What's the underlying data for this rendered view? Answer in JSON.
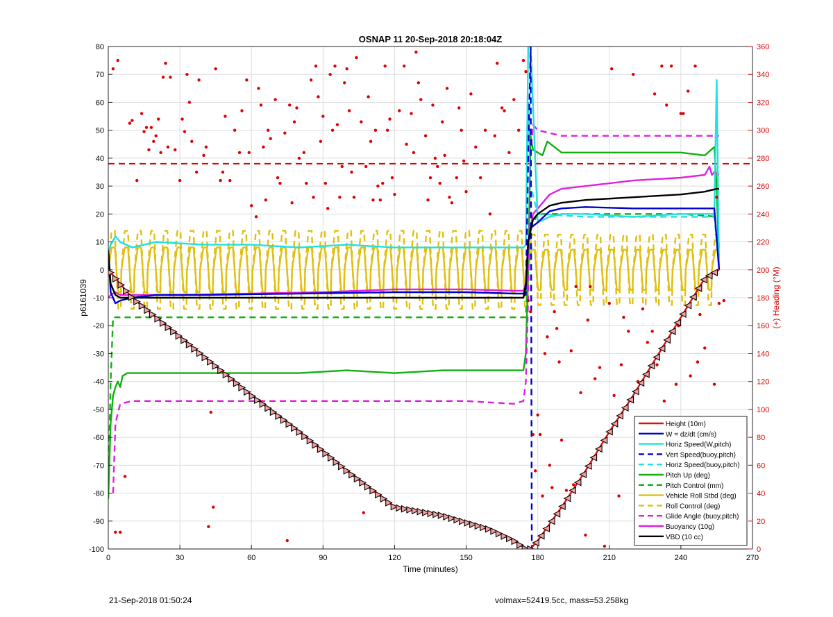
{
  "chart_data": {
    "type": "line",
    "title": "OSNAP 11 20-Sep-2018 20:18:04Z",
    "xlabel": "Time (minutes)",
    "ylabel": "p6161039",
    "y2label": "(+) Heading (°M)",
    "xlim": [
      0,
      270
    ],
    "ylim": [
      -100,
      80
    ],
    "y2lim": [
      0,
      360
    ],
    "xticks": [
      "0",
      "30",
      "60",
      "90",
      "120",
      "150",
      "180",
      "210",
      "240",
      "270"
    ],
    "yticks": [
      "-100",
      "-90",
      "-80",
      "-70",
      "-60",
      "-50",
      "-40",
      "-30",
      "-20",
      "-10",
      "0",
      "10",
      "20",
      "30",
      "40",
      "50",
      "60",
      "70",
      "80"
    ],
    "y2ticks": [
      "0",
      "20",
      "40",
      "60",
      "80",
      "100",
      "120",
      "140",
      "160",
      "180",
      "200",
      "220",
      "240",
      "260",
      "280",
      "300",
      "320",
      "340",
      "360"
    ],
    "grid": true,
    "legend_position": "bottom-right",
    "colors": {
      "height": "#e01010",
      "w": "#0000cc",
      "horiz": "#20e0e0",
      "pitch": "#10b010",
      "roll": "#e0c010",
      "glide": "#e020e0",
      "vbd": "#000000",
      "heading": "#dd0000"
    },
    "series": [
      {
        "name": "Height (10m)",
        "style": "solid",
        "color": "#e01010",
        "x": [
          0,
          1,
          3,
          5,
          10,
          20,
          40,
          60,
          80,
          100,
          120,
          140,
          160,
          170,
          175,
          177,
          178,
          180,
          190,
          200,
          210,
          220,
          230,
          240,
          250,
          256
        ],
        "y": [
          0,
          -1,
          -3,
          -5,
          -10,
          -17,
          -31,
          -45,
          -58,
          -72,
          -85,
          -88,
          -93,
          -97,
          -100,
          -100,
          -99,
          -97,
          -85,
          -72,
          -58,
          -45,
          -31,
          -17,
          -3,
          0
        ]
      },
      {
        "name": "W = dz/dt (cm/s)",
        "style": "solid",
        "color": "#0000cc",
        "x": [
          0,
          1,
          3,
          5,
          10,
          20,
          40,
          80,
          120,
          150,
          170,
          174,
          175,
          176,
          177,
          180,
          185,
          190,
          200,
          220,
          240,
          250,
          254,
          256
        ],
        "y": [
          7,
          -8,
          -12,
          -11,
          -10,
          -9,
          -9,
          -8.5,
          -8,
          -8,
          -8.5,
          -8.5,
          -7,
          10,
          15,
          17,
          21,
          22,
          22.5,
          22,
          22,
          22,
          22,
          0
        ]
      },
      {
        "name": "Horiz Speed(W,pitch)",
        "style": "solid",
        "color": "#20e0e0",
        "x": [
          0,
          1,
          3,
          5,
          10,
          20,
          40,
          60,
          80,
          100,
          120,
          140,
          160,
          170,
          174,
          175,
          176,
          177,
          180,
          185,
          190,
          200,
          220,
          240,
          250,
          254,
          255,
          256
        ],
        "y": [
          6,
          9,
          12,
          10,
          8,
          10,
          9,
          9,
          8,
          9,
          8,
          8,
          8,
          8,
          8,
          9,
          80,
          80,
          17,
          19,
          20,
          20,
          19,
          20,
          20,
          20,
          68,
          0
        ]
      },
      {
        "name": "Vert Speed(buoy,pitch)",
        "style": "dashed",
        "color": "#0000cc",
        "x": [
          174,
          175,
          176,
          177,
          177.5,
          178
        ],
        "y": [
          -9,
          -9,
          40,
          80,
          -100,
          -100
        ]
      },
      {
        "name": "Horiz Speed(buoy,pitch)",
        "style": "dashed",
        "color": "#20e0e0",
        "x": [
          175,
          176,
          177,
          180,
          200,
          230,
          254,
          256
        ],
        "y": [
          10,
          60,
          30,
          20,
          19,
          19,
          19,
          2
        ]
      },
      {
        "name": "Pitch Up (deg)",
        "style": "solid",
        "color": "#10b010",
        "x": [
          0,
          1,
          2,
          3,
          4,
          5,
          6,
          8,
          10,
          20,
          40,
          60,
          80,
          100,
          120,
          140,
          160,
          170,
          174,
          175,
          176,
          177,
          178,
          180,
          182,
          184,
          190,
          200,
          220,
          240,
          250,
          254,
          255,
          256
        ],
        "y": [
          -82,
          -55,
          -45,
          -42,
          -40,
          -42,
          -38,
          -37,
          -37,
          -37,
          -37,
          -37,
          -37,
          -36,
          -37,
          -36,
          -36,
          -36,
          -36,
          -30,
          0,
          48,
          43,
          42,
          41,
          46,
          42,
          42,
          42,
          42,
          41,
          44,
          30,
          0
        ]
      },
      {
        "name": "Pitch Control (mm)",
        "style": "dashed",
        "color": "#10b010",
        "x": [
          0,
          1,
          2,
          5,
          50,
          100,
          150,
          175,
          176,
          177,
          180,
          200,
          240,
          256
        ],
        "y": [
          -80,
          -40,
          -17,
          -17,
          -17,
          -17,
          -17,
          -17,
          0,
          15,
          20,
          20,
          20,
          19
        ]
      },
      {
        "name": "Vehicle Roll Stbd (deg)",
        "style": "solid",
        "color": "#e0c010",
        "kind": "oscillation",
        "x_range": [
          0,
          256
        ],
        "baseline": [
          0,
          0
        ],
        "amplitude": 8
      },
      {
        "name": "Roll Control (deg)",
        "style": "dashed",
        "color": "#e0c010",
        "kind": "oscillation",
        "x_range": [
          0,
          256
        ],
        "baseline": [
          0,
          0
        ],
        "amplitude": 14
      },
      {
        "name": "Glide Angle (buoy,pitch)",
        "style": "dashed",
        "color": "#e020e0",
        "x": [
          2,
          3,
          5,
          10,
          30,
          60,
          90,
          120,
          150,
          170,
          174,
          175,
          176,
          177,
          178,
          180,
          190,
          200,
          220,
          240,
          250,
          254,
          256
        ],
        "y": [
          -80,
          -55,
          -48,
          -47,
          -47,
          -47,
          -47,
          -47,
          -47,
          -48,
          -47,
          -40,
          -10,
          40,
          52,
          50,
          48,
          48,
          48,
          48,
          48,
          48,
          48
        ]
      },
      {
        "name": "Buoyancy (10g)",
        "style": "solid",
        "color": "#e020e0",
        "x": [
          0,
          1,
          3,
          5,
          10,
          30,
          60,
          90,
          120,
          150,
          170,
          174,
          175,
          176,
          177,
          178,
          180,
          185,
          190,
          200,
          220,
          240,
          250,
          252,
          253,
          254,
          256
        ],
        "y": [
          -10,
          -9,
          -8,
          -9,
          -9,
          -9,
          -8.5,
          -8,
          -7,
          -7,
          -7.5,
          -7.5,
          -5,
          10,
          15,
          20,
          22,
          27,
          29,
          30,
          32,
          33,
          34,
          37,
          34,
          35,
          34
        ]
      },
      {
        "name": "VBD (10 cc)",
        "style": "solid",
        "color": "#000000",
        "x": [
          0,
          1,
          3,
          5,
          10,
          20,
          60,
          120,
          170,
          174,
          175,
          176,
          177,
          178,
          180,
          185,
          190,
          200,
          220,
          240,
          250,
          255,
          256
        ],
        "y": [
          7,
          -5,
          -9,
          -10,
          -10,
          -10,
          -10,
          -10,
          -10,
          -10,
          -5,
          10,
          14,
          18,
          20,
          23,
          24,
          25,
          26,
          27,
          28,
          29,
          29
        ]
      }
    ],
    "heading_points": [
      [
        2,
        344
      ],
      [
        3,
        12
      ],
      [
        4,
        350
      ],
      [
        5,
        12
      ],
      [
        7,
        52
      ],
      [
        9,
        305
      ],
      [
        10,
        307
      ],
      [
        12,
        264
      ],
      [
        14,
        312
      ],
      [
        15,
        299
      ],
      [
        16,
        302
      ],
      [
        17,
        286
      ],
      [
        18,
        302
      ],
      [
        19,
        292
      ],
      [
        20,
        296
      ],
      [
        21,
        308
      ],
      [
        22,
        284
      ],
      [
        23,
        338
      ],
      [
        24,
        348
      ],
      [
        25,
        288
      ],
      [
        26,
        338
      ],
      [
        28,
        286
      ],
      [
        30,
        264
      ],
      [
        31,
        308
      ],
      [
        32,
        299
      ],
      [
        33,
        340
      ],
      [
        34,
        320
      ],
      [
        35,
        292
      ],
      [
        37,
        270
      ],
      [
        38,
        336
      ],
      [
        40,
        282
      ],
      [
        41,
        288
      ],
      [
        42,
        16
      ],
      [
        43,
        98
      ],
      [
        44,
        30
      ],
      [
        45,
        344
      ],
      [
        47,
        264
      ],
      [
        48,
        270
      ],
      [
        49,
        310
      ],
      [
        51,
        264
      ],
      [
        53,
        300
      ],
      [
        55,
        284
      ],
      [
        56,
        314
      ],
      [
        58,
        336
      ],
      [
        59,
        284
      ],
      [
        60,
        246
      ],
      [
        62,
        238
      ],
      [
        63,
        330
      ],
      [
        64,
        318
      ],
      [
        65,
        288
      ],
      [
        66,
        250
      ],
      [
        67,
        300
      ],
      [
        68,
        294
      ],
      [
        70,
        322
      ],
      [
        71,
        266
      ],
      [
        72,
        262
      ],
      [
        74,
        298
      ],
      [
        75,
        6
      ],
      [
        76,
        318
      ],
      [
        77,
        248
      ],
      [
        78,
        306
      ],
      [
        79,
        316
      ],
      [
        80,
        280
      ],
      [
        82,
        284
      ],
      [
        83,
        262
      ],
      [
        85,
        336
      ],
      [
        86,
        252
      ],
      [
        87,
        346
      ],
      [
        88,
        324
      ],
      [
        89,
        292
      ],
      [
        90,
        310
      ],
      [
        91,
        262
      ],
      [
        92,
        244
      ],
      [
        93,
        340
      ],
      [
        94,
        300
      ],
      [
        95,
        346
      ],
      [
        96,
        304
      ],
      [
        97,
        252
      ],
      [
        98,
        274
      ],
      [
        99,
        334
      ],
      [
        100,
        344
      ],
      [
        101,
        314
      ],
      [
        102,
        270
      ],
      [
        103,
        252
      ],
      [
        104,
        352
      ],
      [
        106,
        306
      ],
      [
        107,
        26
      ],
      [
        108,
        274
      ],
      [
        109,
        324
      ],
      [
        110,
        292
      ],
      [
        111,
        250
      ],
      [
        112,
        300
      ],
      [
        113,
        260
      ],
      [
        114,
        250
      ],
      [
        115,
        262
      ],
      [
        116,
        346
      ],
      [
        117,
        300
      ],
      [
        118,
        308
      ],
      [
        119,
        266
      ],
      [
        120,
        254
      ],
      [
        122,
        314
      ],
      [
        124,
        346
      ],
      [
        125,
        290
      ],
      [
        127,
        312
      ],
      [
        128,
        284
      ],
      [
        129,
        356
      ],
      [
        130,
        334
      ],
      [
        131,
        322
      ],
      [
        133,
        296
      ],
      [
        134,
        250
      ],
      [
        135,
        266
      ],
      [
        136,
        318
      ],
      [
        137,
        280
      ],
      [
        138,
        274
      ],
      [
        139,
        262
      ],
      [
        140,
        306
      ],
      [
        141,
        282
      ],
      [
        142,
        330
      ],
      [
        143,
        252
      ],
      [
        144,
        248
      ],
      [
        146,
        266
      ],
      [
        147,
        316
      ],
      [
        148,
        300
      ],
      [
        149,
        278
      ],
      [
        150,
        256
      ],
      [
        152,
        326
      ],
      [
        154,
        288
      ],
      [
        156,
        266
      ],
      [
        158,
        300
      ],
      [
        160,
        240
      ],
      [
        162,
        296
      ],
      [
        163,
        348
      ],
      [
        165,
        316
      ],
      [
        166,
        314
      ],
      [
        168,
        284
      ],
      [
        170,
        322
      ],
      [
        172,
        300
      ],
      [
        174,
        350
      ],
      [
        175,
        342
      ],
      [
        176,
        178
      ],
      [
        177,
        170
      ],
      [
        178,
        82
      ],
      [
        179,
        56
      ],
      [
        180,
        96
      ],
      [
        181,
        82
      ],
      [
        182,
        38
      ],
      [
        183,
        140
      ],
      [
        184,
        152
      ],
      [
        185,
        60
      ],
      [
        186,
        44
      ],
      [
        187,
        170
      ],
      [
        188,
        158
      ],
      [
        189,
        134
      ],
      [
        190,
        78
      ],
      [
        192,
        42
      ],
      [
        194,
        142
      ],
      [
        195,
        46
      ],
      [
        196,
        188
      ],
      [
        198,
        112
      ],
      [
        200,
        10
      ],
      [
        201,
        164
      ],
      [
        202,
        188
      ],
      [
        204,
        122
      ],
      [
        206,
        130
      ],
      [
        208,
        2
      ],
      [
        210,
        176
      ],
      [
        211,
        344
      ],
      [
        212,
        110
      ],
      [
        214,
        38
      ],
      [
        215,
        132
      ],
      [
        216,
        166
      ],
      [
        218,
        156
      ],
      [
        220,
        340
      ],
      [
        222,
        120
      ],
      [
        224,
        172
      ],
      [
        226,
        148
      ],
      [
        228,
        156
      ],
      [
        229,
        326
      ],
      [
        230,
        132
      ],
      [
        231,
        90
      ],
      [
        232,
        346
      ],
      [
        233,
        106
      ],
      [
        234,
        318
      ],
      [
        235,
        46
      ],
      [
        236,
        346
      ],
      [
        238,
        118
      ],
      [
        239,
        160
      ],
      [
        240,
        312
      ],
      [
        241,
        312
      ],
      [
        243,
        328
      ],
      [
        244,
        124
      ],
      [
        246,
        346
      ],
      [
        247,
        134
      ],
      [
        248,
        168
      ],
      [
        250,
        144
      ],
      [
        252,
        40
      ],
      [
        254,
        118
      ],
      [
        255,
        252
      ],
      [
        256,
        176
      ],
      [
        258,
        178
      ]
    ],
    "reference_lines": [
      {
        "axis": "y2",
        "value": 276,
        "color": "#dd0000",
        "style": "dashed"
      }
    ]
  },
  "footer": {
    "date": "21-Sep-2018 01:50:24",
    "params": "volmax=52419.5cc, mass=53.258kg"
  }
}
